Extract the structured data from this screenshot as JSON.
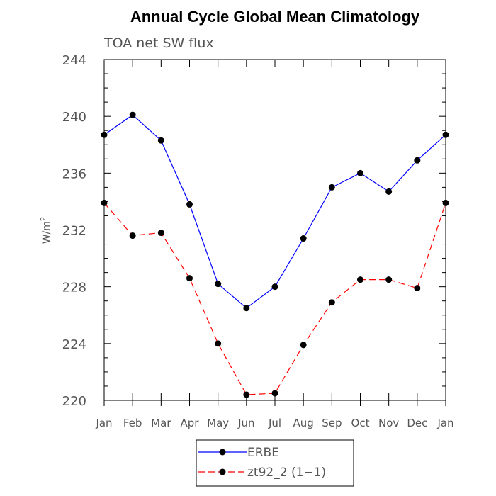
{
  "chart_data": {
    "type": "line",
    "title": "Annual Cycle Global Mean Climatology",
    "subtitle": "TOA net SW flux",
    "ylabel": "W/m",
    "ylabel_superscript": "2",
    "categories": [
      "Jan",
      "Feb",
      "Mar",
      "Apr",
      "May",
      "Jun",
      "Jul",
      "Aug",
      "Sep",
      "Oct",
      "Nov",
      "Dec",
      "Jan"
    ],
    "ylim": [
      220,
      244
    ],
    "yticks": [
      220,
      224,
      228,
      232,
      236,
      240,
      244
    ],
    "grid": false,
    "legend_position": "bottom-center",
    "series": [
      {
        "name": "ERBE",
        "color": "#0000ff",
        "line_style": "solid",
        "marker": "filled-circle",
        "values": [
          238.7,
          240.1,
          238.3,
          233.8,
          228.2,
          226.5,
          228.0,
          231.4,
          235.0,
          236.0,
          234.7,
          236.9,
          238.7
        ]
      },
      {
        "name": "zt92_2 (1−1)",
        "color": "#ff0000",
        "line_style": "dashed",
        "marker": "filled-circle",
        "values": [
          233.9,
          231.6,
          231.8,
          228.6,
          224.0,
          220.4,
          220.5,
          223.9,
          226.9,
          228.5,
          228.5,
          227.9,
          233.9
        ]
      }
    ]
  }
}
